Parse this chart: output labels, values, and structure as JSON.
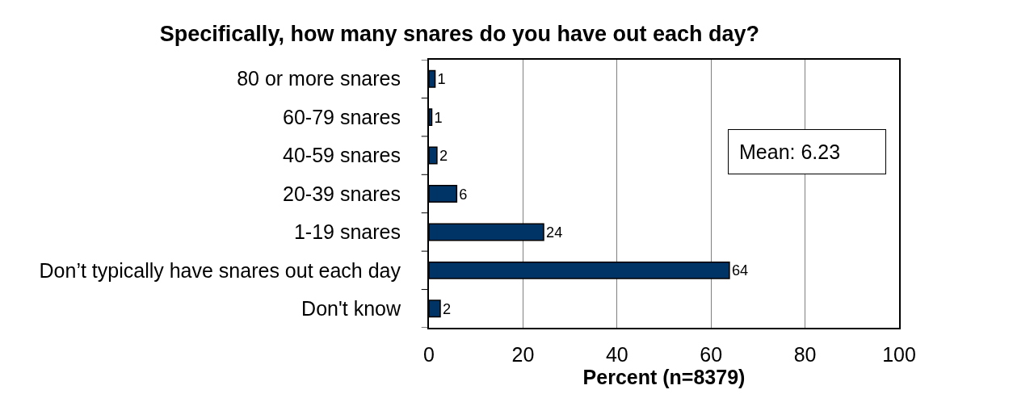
{
  "chart_data": {
    "type": "bar",
    "orientation": "horizontal",
    "title": "Specifically, how many snares do you have out each day?",
    "xlabel": "Percent (n=8379)",
    "categories": [
      "80 or more snares",
      "60-79 snares",
      "40-59 snares",
      "20-39 snares",
      "1-19 snares",
      "Don’t typically have snares out each day",
      "Don't know"
    ],
    "values": [
      1.3,
      0.6,
      1.7,
      5.9,
      24.4,
      63.9,
      2.4
    ],
    "value_labels": [
      "1",
      "1",
      "2",
      "6",
      "24",
      "64",
      "2"
    ],
    "color": "#003366",
    "xlim": [
      0,
      100
    ],
    "xticks": [
      0,
      20,
      40,
      60,
      80,
      100
    ],
    "grid": "x",
    "annotations": [
      "Mean: 6.23"
    ]
  }
}
